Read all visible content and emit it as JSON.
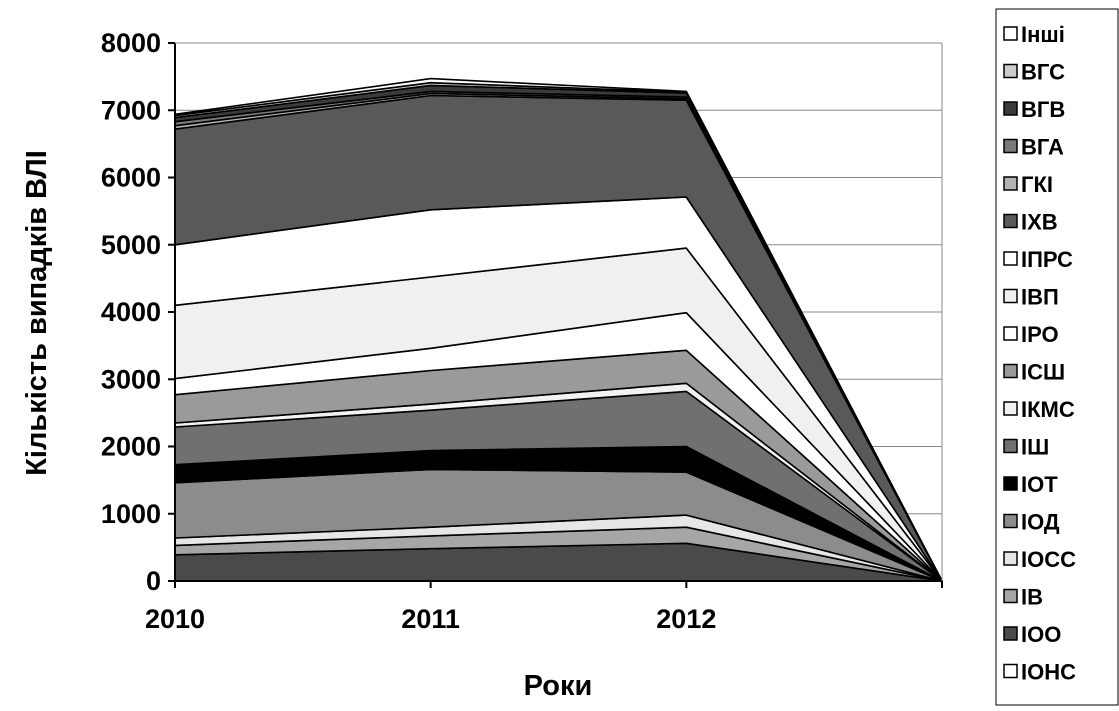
{
  "chart_data": {
    "type": "area",
    "stacked": true,
    "title": "",
    "xlabel": "Роки",
    "ylabel": "Кількість випадків ВЛІ",
    "x": [
      "2010",
      "2011",
      "2012",
      ""
    ],
    "x_tick_labels": [
      "2010",
      "2011",
      "2012"
    ],
    "ylim": [
      0,
      8000
    ],
    "y_ticks": [
      "0",
      "1000",
      "2000",
      "3000",
      "4000",
      "5000",
      "6000",
      "7000",
      "8000"
    ],
    "grid": "horizontal",
    "legend_position": "right",
    "series": [
      {
        "name": "ІОНС",
        "color": "#ffffff",
        "values": [
          0,
          0,
          0,
          0
        ]
      },
      {
        "name": "ІОО",
        "color": "#4a4a4a",
        "values": [
          390,
          480,
          560,
          0
        ]
      },
      {
        "name": "ІВ",
        "color": "#a6a6a6",
        "values": [
          140,
          190,
          240,
          0
        ]
      },
      {
        "name": "ІОСС",
        "color": "#e6e6e6",
        "values": [
          110,
          130,
          180,
          0
        ]
      },
      {
        "name": "ІОД",
        "color": "#8c8c8c",
        "values": [
          820,
          860,
          640,
          0
        ]
      },
      {
        "name": "ІОТ",
        "color": "#000000",
        "values": [
          270,
          280,
          380,
          0
        ]
      },
      {
        "name": "ІШ",
        "color": "#707070",
        "values": [
          560,
          600,
          820,
          0
        ]
      },
      {
        "name": "ІКМС",
        "color": "#f2f2f2",
        "values": [
          60,
          90,
          120,
          0
        ]
      },
      {
        "name": "ІСШ",
        "color": "#9a9a9a",
        "values": [
          420,
          500,
          490,
          0
        ]
      },
      {
        "name": "ІРО",
        "color": "#ffffff",
        "values": [
          240,
          330,
          560,
          0
        ]
      },
      {
        "name": "ІВП",
        "color": "#f0f0f0",
        "values": [
          1090,
          1060,
          960,
          0
        ]
      },
      {
        "name": "ІПРС",
        "color": "#ffffff",
        "values": [
          900,
          1000,
          760,
          0
        ]
      },
      {
        "name": "ІХВ",
        "color": "#595959",
        "values": [
          1720,
          1700,
          1440,
          0
        ]
      },
      {
        "name": "ГКІ",
        "color": "#b3b3b3",
        "values": [
          50,
          30,
          20,
          0
        ]
      },
      {
        "name": "ВГА",
        "color": "#7a7a7a",
        "values": [
          60,
          30,
          25,
          0
        ]
      },
      {
        "name": "ВГВ",
        "color": "#3a3a3a",
        "values": [
          60,
          90,
          60,
          0
        ]
      },
      {
        "name": "ВГС",
        "color": "#cccccc",
        "values": [
          30,
          40,
          15,
          0
        ]
      },
      {
        "name": "Інші",
        "color": "#ffffff",
        "values": [
          20,
          60,
          10,
          0
        ]
      }
    ]
  }
}
